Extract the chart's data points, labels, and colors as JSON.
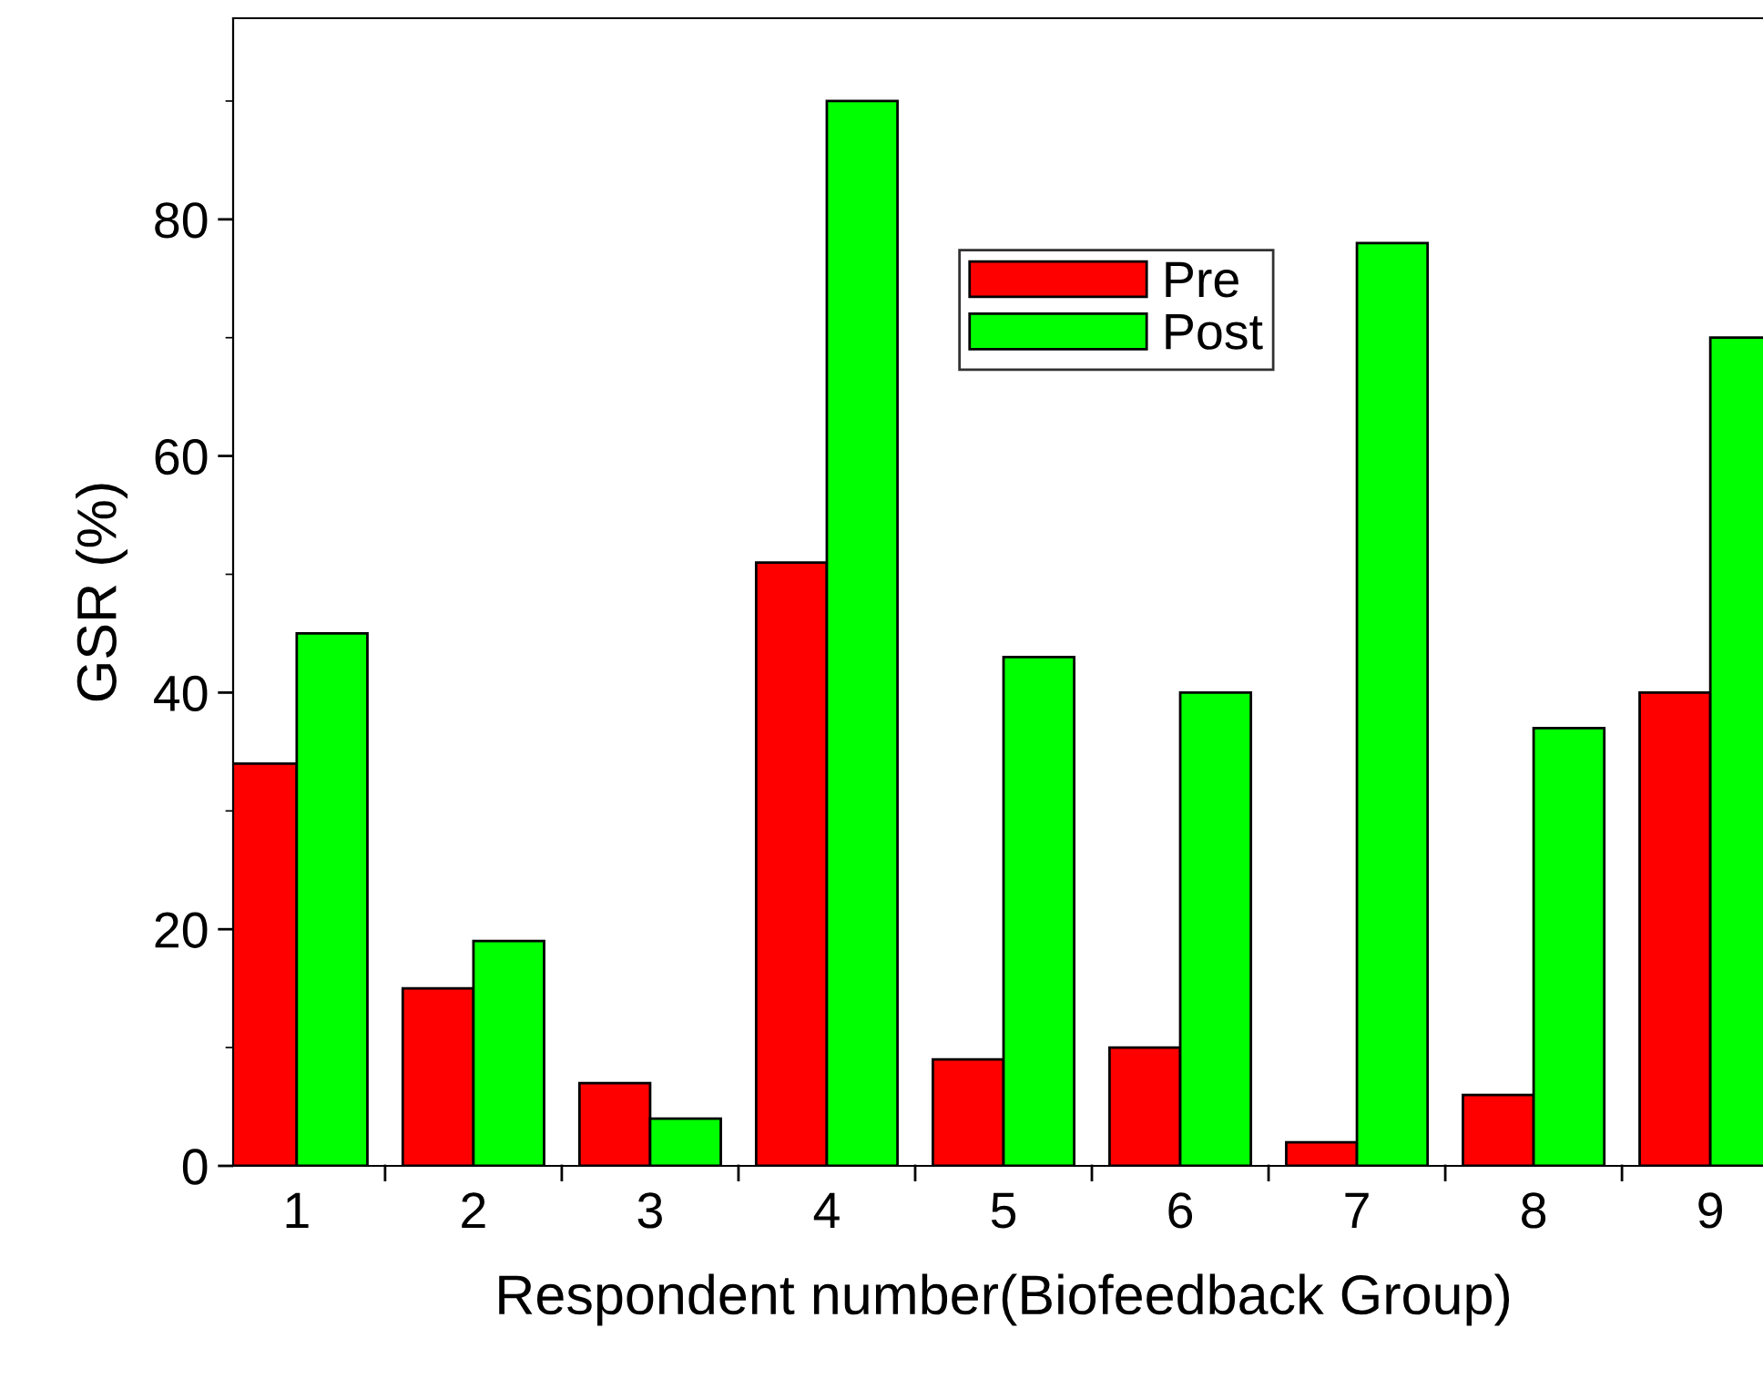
{
  "chart_data": {
    "type": "bar",
    "xlabel": "Respondent number(Biofeedback Group)",
    "ylabel": "GSR (%)",
    "categories": [
      "1",
      "2",
      "3",
      "4",
      "5",
      "6",
      "7",
      "8",
      "9"
    ],
    "series": [
      {
        "name": "Pre",
        "color": "#ff0000",
        "values": [
          34,
          15,
          7,
          51,
          9,
          10,
          2,
          6,
          40
        ]
      },
      {
        "name": "Post",
        "color": "#00ff00",
        "values": [
          45,
          19,
          4,
          90,
          43,
          40,
          78,
          37,
          70
        ]
      }
    ],
    "ylim": [
      0,
      97
    ],
    "yticks": [
      0,
      20,
      40,
      60,
      80
    ],
    "grid": false,
    "legend": "top"
  }
}
